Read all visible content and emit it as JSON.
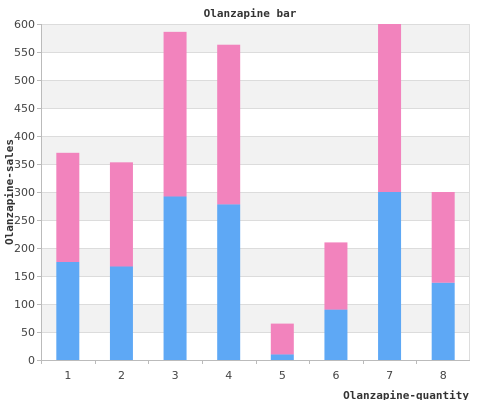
{
  "chart_data": {
    "type": "bar",
    "stacked": true,
    "title": "Olanzapine bar",
    "xlabel": "Olanzapine-quantity",
    "ylabel": "Olanzapine-sales",
    "categories": [
      "1",
      "2",
      "3",
      "4",
      "5",
      "6",
      "7",
      "8"
    ],
    "series": [
      {
        "values": [
          175,
          167,
          292,
          278,
          10,
          90,
          300,
          138
        ],
        "color": "#5ea8f5"
      },
      {
        "values": [
          195,
          186,
          294,
          285,
          55,
          120,
          300,
          162
        ],
        "color": "#f283bd"
      }
    ],
    "ylim": [
      0,
      600
    ],
    "yticks": [
      0,
      50,
      100,
      150,
      200,
      250,
      300,
      350,
      400,
      450,
      500,
      550,
      600
    ],
    "grid": true,
    "band_colors": [
      "#ffffff",
      "#f2f2f2"
    ]
  }
}
